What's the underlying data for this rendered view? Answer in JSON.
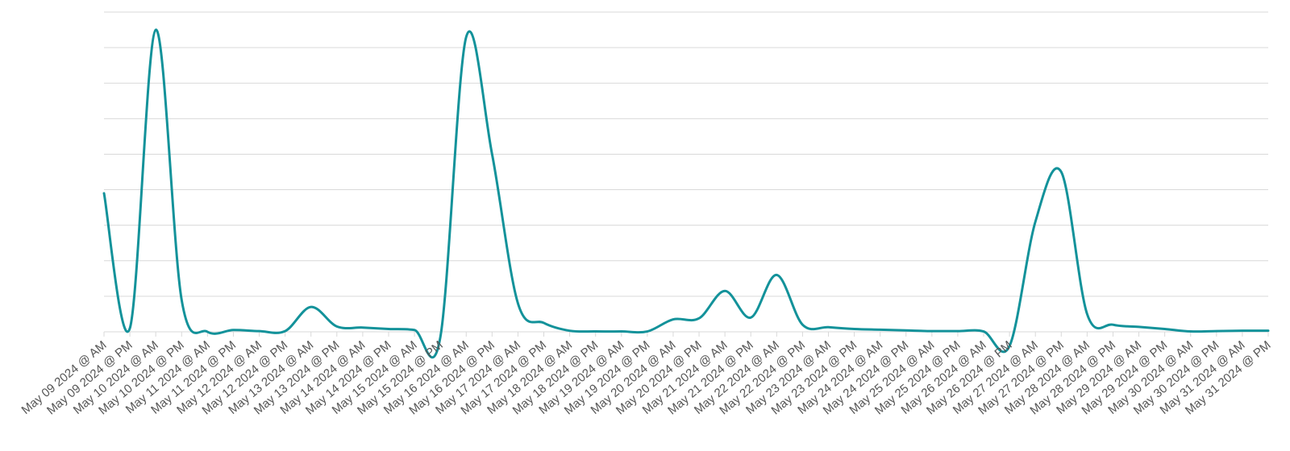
{
  "chart_data": {
    "type": "line",
    "title": "",
    "xlabel": "",
    "ylabel": "",
    "x": [
      "May 09 2024 @ AM",
      "May 09 2024 @ PM",
      "May 10 2024 @ AM",
      "May 10 2024 @ PM",
      "May 11 2024 @ AM",
      "May 11 2024 @ PM",
      "May 12 2024 @ AM",
      "May 12 2024 @ PM",
      "May 13 2024 @ AM",
      "May 13 2024 @ PM",
      "May 14 2024 @ AM",
      "May 14 2024 @ PM",
      "May 15 2024 @ AM",
      "May 15 2024 @ PM",
      "May 16 2024 @ AM",
      "May 16 2024 @ PM",
      "May 17 2024 @ AM",
      "May 17 2024 @ PM",
      "May 18 2024 @ AM",
      "May 18 2024 @ PM",
      "May 19 2024 @ AM",
      "May 19 2024 @ PM",
      "May 20 2024 @ AM",
      "May 20 2024 @ PM",
      "May 21 2024 @ AM",
      "May 21 2024 @ PM",
      "May 22 2024 @ AM",
      "May 22 2024 @ PM",
      "May 23 2024 @ AM",
      "May 23 2024 @ PM",
      "May 24 2024 @ AM",
      "May 24 2024 @ PM",
      "May 25 2024 @ AM",
      "May 25 2024 @ PM",
      "May 26 2024 @ AM",
      "May 26 2024 @ PM",
      "May 27 2024 @ AM",
      "May 27 2024 @ PM",
      "May 28 2024 @ AM",
      "May 28 2024 @ PM",
      "May 29 2024 @ AM",
      "May 29 2024 @ PM",
      "May 30 2024 @ AM",
      "May 30 2024 @ PM",
      "May 31 2024 @ AM",
      "May 31 2024 @ PM"
    ],
    "series": [
      {
        "color": "#13929a",
        "values": [
          39,
          1,
          85,
          9,
          0,
          0.5,
          0.2,
          0.2,
          7,
          1.5,
          1.2,
          0.8,
          0.5,
          -1.5,
          83,
          50,
          8,
          2.5,
          0.3,
          0.1,
          0.1,
          0.1,
          3.5,
          3.8,
          11.5,
          4,
          16,
          2,
          1.3,
          0.8,
          0.6,
          0.4,
          0.2,
          0.2,
          0.1,
          -4,
          31,
          45,
          5,
          2,
          1.4,
          0.8,
          0.1,
          0.2,
          0.3,
          0.3
        ]
      }
    ],
    "ylim": [
      0,
      90
    ],
    "y_ticks": [
      0,
      10,
      20,
      30,
      40,
      50,
      60,
      70,
      80,
      90
    ],
    "y_tick_labels_visible": false,
    "grid": true,
    "legend": "none"
  }
}
